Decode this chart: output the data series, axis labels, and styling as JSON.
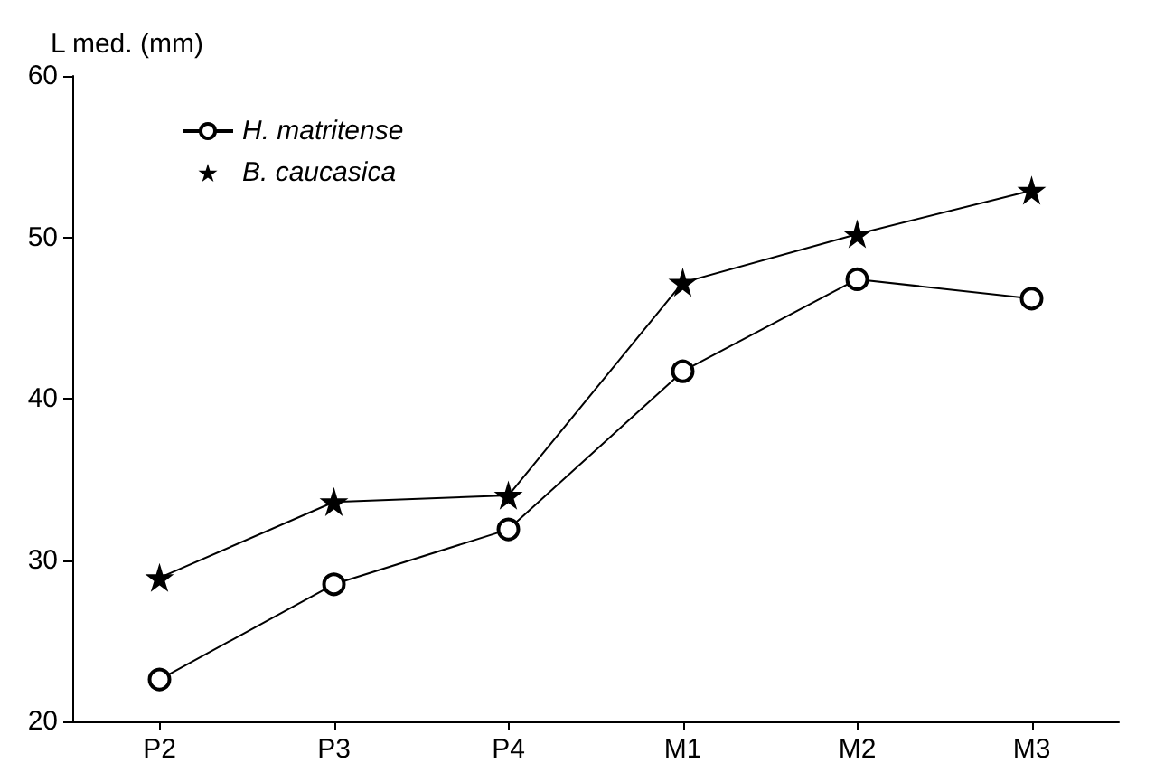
{
  "chart_data": {
    "type": "line",
    "ylabel": "L med. (mm)",
    "categories": [
      "P2",
      "P3",
      "P4",
      "M1",
      "M2",
      "M3"
    ],
    "series": [
      {
        "name": "H. matritense",
        "color": "#000000",
        "marker": "circle",
        "values": [
          22.6,
          28.5,
          31.9,
          41.7,
          47.4,
          46.2
        ]
      },
      {
        "name": "B. caucasica",
        "color": "#000000",
        "marker": "star",
        "values": [
          28.9,
          33.6,
          34.0,
          47.2,
          50.2,
          52.9
        ]
      }
    ],
    "ylim": [
      20,
      60
    ],
    "yticks": [
      20,
      30,
      40,
      50,
      60
    ],
    "grid": false,
    "legend": "top left",
    "line_style": "solid"
  }
}
